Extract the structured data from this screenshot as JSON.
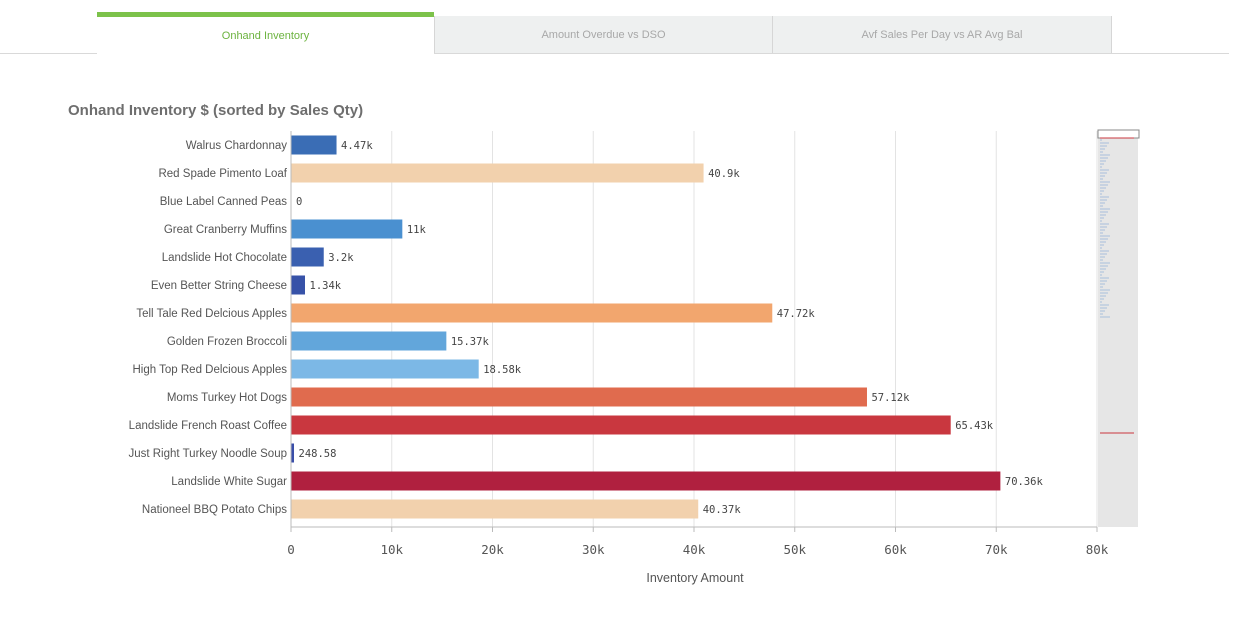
{
  "tabs": [
    {
      "label": "Onhand Inventory",
      "active": true
    },
    {
      "label": "Amount Overdue vs DSO",
      "active": false
    },
    {
      "label": "Avf Sales Per Day vs AR Avg Bal",
      "active": false
    }
  ],
  "chart_title": "Onhand Inventory $ (sorted by Sales Qty)",
  "chart_data": {
    "type": "bar",
    "orientation": "horizontal",
    "title": "Onhand Inventory $ (sorted by Sales Qty)",
    "xlabel": "Inventory Amount",
    "ylabel": "",
    "xlim": [
      0,
      80000
    ],
    "x_ticks": [
      "0",
      "10k",
      "20k",
      "30k",
      "40k",
      "50k",
      "60k",
      "70k",
      "80k"
    ],
    "grid": true,
    "categories": [
      "Walrus Chardonnay",
      "Red Spade Pimento Loaf",
      "Blue Label Canned Peas",
      "Great Cranberry Muffins",
      "Landslide Hot Chocolate",
      "Even Better String Cheese",
      "Tell Tale Red Delcious Apples",
      "Golden Frozen Broccoli",
      "High Top Red Delcious Apples",
      "Moms Turkey Hot Dogs",
      "Landslide French Roast Coffee",
      "Just Right Turkey Noodle Soup",
      "Landslide White Sugar",
      "Nationeel BBQ Potato Chips"
    ],
    "values": [
      4470,
      40900,
      0,
      11000,
      3200,
      1340,
      47720,
      15370,
      18580,
      57120,
      65430,
      248.58,
      70360,
      40370
    ],
    "value_labels": [
      "4.47k",
      "40.9k",
      "0",
      "11k",
      "3.2k",
      "1.34k",
      "47.72k",
      "15.37k",
      "18.58k",
      "57.12k",
      "65.43k",
      "248.58",
      "70.36k",
      "40.37k"
    ],
    "colors": [
      "#3a6db5",
      "#f2d1ad",
      "#3a6db5",
      "#4a90d0",
      "#3a60b0",
      "#3752a8",
      "#f2a66e",
      "#62a6db",
      "#7cb8e6",
      "#e06b4e",
      "#c9373f",
      "#3a4ea8",
      "#b0203f",
      "#f2d1ad"
    ]
  }
}
